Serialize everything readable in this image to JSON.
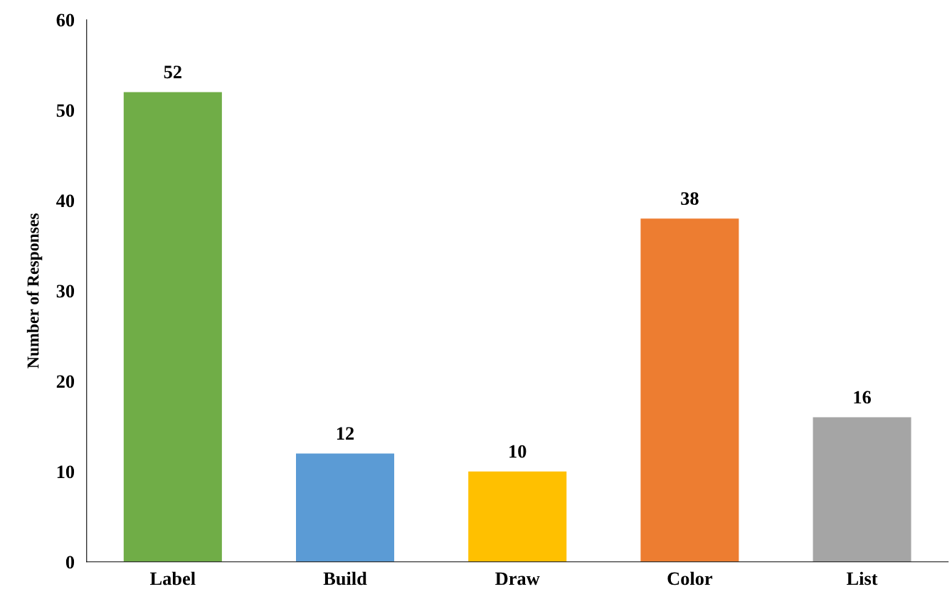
{
  "chart_data": {
    "type": "bar",
    "ylabel": "Number of Responses",
    "categories": [
      "Label",
      "Build",
      "Draw",
      "Color",
      "List"
    ],
    "values": [
      52,
      12,
      10,
      38,
      16
    ],
    "colors": [
      "#70ad47",
      "#5b9bd5",
      "#ffc000",
      "#ed7d31",
      "#a5a5a5"
    ],
    "ylim": [
      0,
      60
    ],
    "yticks": [
      0,
      10,
      20,
      30,
      40,
      50,
      60
    ],
    "data_labels": true,
    "grid": false,
    "legend": false
  }
}
